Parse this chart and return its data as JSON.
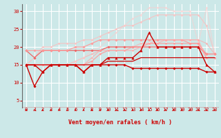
{
  "xlabel": "Vent moyen/en rafales ( km/h )",
  "xlim": [
    -0.5,
    23.5
  ],
  "ylim": [
    3,
    32
  ],
  "yticks": [
    5,
    10,
    15,
    20,
    25,
    30
  ],
  "xticks": [
    0,
    1,
    2,
    3,
    4,
    5,
    6,
    7,
    8,
    9,
    10,
    11,
    12,
    13,
    14,
    15,
    16,
    17,
    18,
    19,
    20,
    21,
    22,
    23
  ],
  "background_color": "#cce8e8",
  "grid_color": "#ffffff",
  "series": [
    {
      "x": [
        0,
        1,
        2,
        3,
        4,
        5,
        6,
        7,
        8,
        9,
        10,
        11,
        12,
        13,
        14,
        15,
        16,
        17,
        18,
        19,
        20,
        21,
        22,
        23
      ],
      "y": [
        15,
        9,
        13,
        15,
        15,
        15,
        15,
        13,
        15,
        15,
        15,
        15,
        15,
        14,
        14,
        14,
        14,
        14,
        14,
        14,
        14,
        14,
        13,
        13
      ],
      "color": "#cc0000",
      "lw": 1.0,
      "marker": "D",
      "ms": 1.8,
      "alpha": 1.0,
      "zorder": 5
    },
    {
      "x": [
        0,
        1,
        2,
        3,
        4,
        5,
        6,
        7,
        8,
        9,
        10,
        11,
        12,
        13,
        14,
        15,
        16,
        17,
        18,
        19,
        20,
        21,
        22,
        23
      ],
      "y": [
        15,
        15,
        13,
        15,
        15,
        15,
        15,
        13,
        15,
        15,
        17,
        17,
        17,
        17,
        19,
        24,
        20,
        20,
        20,
        20,
        20,
        20,
        15,
        13
      ],
      "color": "#cc0000",
      "lw": 1.0,
      "marker": "^",
      "ms": 2.5,
      "alpha": 1.0,
      "zorder": 5
    },
    {
      "x": [
        0,
        1,
        2,
        3,
        4,
        5,
        6,
        7,
        8,
        9,
        10,
        11,
        12,
        13,
        14,
        15,
        16,
        17,
        18,
        19,
        20,
        21,
        22,
        23
      ],
      "y": [
        15,
        15,
        15,
        15,
        15,
        15,
        15,
        15,
        15,
        15,
        16,
        16,
        16,
        16,
        17,
        17,
        17,
        17,
        17,
        17,
        17,
        17,
        17,
        17
      ],
      "color": "#cc0000",
      "lw": 0.9,
      "marker": null,
      "ms": 0,
      "alpha": 1.0,
      "zorder": 4
    },
    {
      "x": [
        0,
        1,
        2,
        3,
        4,
        5,
        6,
        7,
        8,
        9,
        10,
        11,
        12,
        13,
        14,
        15,
        16,
        17,
        18,
        19,
        20,
        21,
        22,
        23
      ],
      "y": [
        19,
        17,
        19,
        19,
        19,
        19,
        19,
        19,
        19,
        19,
        20,
        20,
        20,
        20,
        20,
        20,
        20,
        20,
        20,
        20,
        20,
        20,
        18,
        18
      ],
      "color": "#ee6666",
      "lw": 0.9,
      "marker": "D",
      "ms": 1.8,
      "alpha": 1.0,
      "zorder": 3
    },
    {
      "x": [
        0,
        1,
        2,
        3,
        4,
        5,
        6,
        7,
        8,
        9,
        10,
        11,
        12,
        13,
        14,
        15,
        16,
        17,
        18,
        19,
        20,
        21,
        22,
        23
      ],
      "y": [
        19,
        19,
        19,
        19,
        19,
        19,
        20,
        20,
        21,
        22,
        22,
        22,
        22,
        22,
        22,
        22,
        22,
        22,
        22,
        22,
        21,
        21,
        18,
        18
      ],
      "color": "#ff9999",
      "lw": 0.9,
      "marker": "D",
      "ms": 1.8,
      "alpha": 0.9,
      "zorder": 3
    },
    {
      "x": [
        0,
        1,
        2,
        3,
        4,
        5,
        6,
        7,
        8,
        9,
        10,
        11,
        12,
        13,
        14,
        15,
        16,
        17,
        18,
        19,
        20,
        21,
        22,
        23
      ],
      "y": [
        15,
        15,
        15,
        15,
        15,
        15,
        15,
        15,
        16,
        18,
        19,
        19,
        19,
        20,
        20,
        21,
        21,
        21,
        21,
        21,
        21,
        21,
        17,
        17
      ],
      "color": "#ff9999",
      "lw": 0.9,
      "marker": "D",
      "ms": 1.5,
      "alpha": 0.85,
      "zorder": 3
    },
    {
      "x": [
        0,
        1,
        2,
        3,
        4,
        5,
        6,
        7,
        8,
        9,
        10,
        11,
        12,
        13,
        14,
        15,
        16,
        17,
        18,
        19,
        20,
        21,
        22,
        23
      ],
      "y": [
        15,
        15,
        15,
        15,
        15,
        15,
        15,
        15,
        17,
        19,
        19,
        19,
        19,
        19,
        20,
        21,
        21,
        22,
        22,
        22,
        22,
        22,
        17,
        17
      ],
      "color": "#ffaaaa",
      "lw": 0.9,
      "marker": "D",
      "ms": 1.5,
      "alpha": 0.75,
      "zorder": 3
    },
    {
      "x": [
        0,
        1,
        2,
        3,
        4,
        5,
        6,
        7,
        8,
        9,
        10,
        11,
        12,
        13,
        14,
        15,
        16,
        17,
        18,
        19,
        20,
        21,
        22,
        23
      ],
      "y": [
        15,
        17,
        20,
        20,
        21,
        21,
        21,
        22,
        22,
        23,
        24,
        25,
        26,
        26,
        27,
        28,
        29,
        29,
        29,
        29,
        29,
        29,
        26,
        18
      ],
      "color": "#ffbbbb",
      "lw": 0.9,
      "marker": "D",
      "ms": 1.5,
      "alpha": 0.7,
      "zorder": 2
    },
    {
      "x": [
        0,
        1,
        2,
        3,
        4,
        5,
        6,
        7,
        8,
        9,
        10,
        11,
        12,
        13,
        14,
        15,
        16,
        17,
        18,
        19,
        20,
        21,
        22,
        23
      ],
      "y": [
        15,
        15,
        15,
        15,
        15,
        15,
        16,
        17,
        18,
        19,
        20,
        20,
        20,
        20,
        21,
        21,
        22,
        22,
        22,
        22,
        22,
        22,
        21,
        18
      ],
      "color": "#ffaaaa",
      "lw": 0.9,
      "marker": "D",
      "ms": 1.5,
      "alpha": 0.65,
      "zorder": 2
    },
    {
      "x": [
        0,
        1,
        2,
        3,
        4,
        5,
        6,
        7,
        8,
        9,
        10,
        11,
        12,
        13,
        14,
        15,
        16,
        17,
        18,
        19,
        20,
        21,
        22,
        23
      ],
      "y": [
        15,
        15,
        15,
        15,
        15,
        15,
        16,
        17,
        19,
        20,
        22,
        24,
        26,
        28,
        29,
        31,
        31,
        31,
        30,
        30,
        30,
        21,
        31,
        18
      ],
      "color": "#ffcccc",
      "lw": 0.9,
      "marker": "D",
      "ms": 1.5,
      "alpha": 0.55,
      "zorder": 2
    }
  ],
  "arrow_color": "#cc0000",
  "xlabel_color": "#cc0000",
  "xlabel_fontsize": 6,
  "tick_fontsize": 5,
  "tick_color": "#cc0000",
  "left_spine_color": "#666666"
}
